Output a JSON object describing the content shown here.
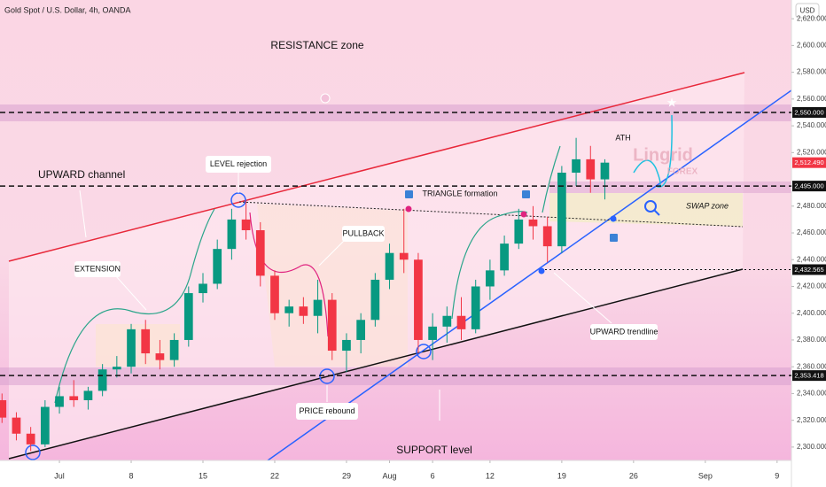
{
  "header": "Gold Spot / U.S. Dollar, 4h, OANDA",
  "currency": "USD",
  "watermark": {
    "brand": "Lingrid",
    "sub": "FOREX"
  },
  "chart_data": {
    "type": "candlestick",
    "x": [
      -4,
      -3,
      -2,
      -1,
      0,
      1,
      2,
      3,
      4,
      5,
      6,
      7,
      8,
      9,
      10,
      11,
      12,
      13,
      14,
      15,
      16,
      17,
      18,
      19,
      20,
      21,
      22,
      23,
      24,
      25,
      26,
      27,
      28,
      29,
      30,
      31,
      32,
      33,
      34,
      35,
      36,
      37,
      38
    ],
    "open": [
      2335,
      2322,
      2310,
      2302,
      2330,
      2338,
      2335,
      2342,
      2358,
      2360,
      2388,
      2370,
      2365,
      2380,
      2415,
      2422,
      2448,
      2470,
      2462,
      2428,
      2400,
      2405,
      2398,
      2410,
      2372,
      2380,
      2395,
      2425,
      2445,
      2440,
      2380,
      2390,
      2398,
      2388,
      2420,
      2432,
      2452,
      2470,
      2465,
      2450,
      2505,
      2515,
      2500
    ],
    "high": [
      2340,
      2326,
      2315,
      2335,
      2345,
      2350,
      2345,
      2362,
      2368,
      2392,
      2395,
      2380,
      2385,
      2420,
      2430,
      2455,
      2478,
      2484,
      2468,
      2432,
      2410,
      2412,
      2425,
      2415,
      2385,
      2400,
      2430,
      2452,
      2478,
      2445,
      2400,
      2405,
      2412,
      2425,
      2440,
      2458,
      2478,
      2480,
      2472,
      2510,
      2531,
      2525,
      2515
    ],
    "low": [
      2318,
      2305,
      2297,
      2300,
      2325,
      2330,
      2328,
      2338,
      2352,
      2355,
      2362,
      2358,
      2360,
      2375,
      2408,
      2418,
      2440,
      2455,
      2420,
      2395,
      2390,
      2392,
      2385,
      2365,
      2356,
      2370,
      2390,
      2418,
      2430,
      2370,
      2365,
      2378,
      2380,
      2385,
      2410,
      2428,
      2448,
      2455,
      2438,
      2445,
      2495,
      2490,
      2485
    ],
    "close": [
      2322,
      2310,
      2302,
      2330,
      2338,
      2335,
      2342,
      2358,
      2360,
      2388,
      2370,
      2365,
      2380,
      2415,
      2422,
      2448,
      2470,
      2462,
      2428,
      2400,
      2405,
      2398,
      2410,
      2372,
      2380,
      2395,
      2425,
      2445,
      2440,
      2380,
      2390,
      2398,
      2388,
      2420,
      2432,
      2452,
      2470,
      2465,
      2450,
      2505,
      2515,
      2500,
      2512.49
    ],
    "up_color": "#089981",
    "down_color": "#f23645",
    "xlim": [
      -4.14,
      51
    ],
    "ylim": [
      2290,
      2634
    ],
    "xticks": [
      {
        "value": 0,
        "label": "Jul"
      },
      {
        "value": 5,
        "label": "8"
      },
      {
        "value": 10,
        "label": "15"
      },
      {
        "value": 15,
        "label": "22"
      },
      {
        "value": 20,
        "label": "29"
      },
      {
        "value": 23,
        "label": "Aug"
      },
      {
        "value": 26,
        "label": "6"
      },
      {
        "value": 30,
        "label": "12"
      },
      {
        "value": 35,
        "label": "19"
      },
      {
        "value": 40,
        "label": "26"
      },
      {
        "value": 45,
        "label": "Sep"
      },
      {
        "value": 50,
        "label": "9"
      }
    ],
    "yticks": [
      {
        "value": 2300,
        "label": "2,300.000"
      },
      {
        "value": 2320,
        "label": "2,320.000"
      },
      {
        "value": 2340,
        "label": "2,340.000"
      },
      {
        "value": 2360,
        "label": "2,360.000"
      },
      {
        "value": 2380,
        "label": "2,380.000"
      },
      {
        "value": 2400,
        "label": "2,400.000"
      },
      {
        "value": 2420,
        "label": "2,420.000"
      },
      {
        "value": 2440,
        "label": "2,440.000"
      },
      {
        "value": 2460,
        "label": "2,460.000"
      },
      {
        "value": 2480,
        "label": "2,480.000"
      },
      {
        "value": 2520,
        "label": "2,520.000"
      },
      {
        "value": 2540,
        "label": "2,540.000"
      },
      {
        "value": 2560,
        "label": "2,560.000"
      },
      {
        "value": 2580,
        "label": "2,580.000"
      },
      {
        "value": 2600,
        "label": "2,600.000"
      },
      {
        "value": 2620,
        "label": "2,620.000"
      }
    ],
    "price_levels": [
      {
        "value": 2550,
        "label": "2,550.000",
        "style": "dashed"
      },
      {
        "value": 2495,
        "label": "2,495.000",
        "style": "dashed"
      },
      {
        "value": 2432.565,
        "label": "2,432.565",
        "style": "dotted"
      },
      {
        "value": 2353.418,
        "label": "2,353.418",
        "style": "dashed"
      }
    ],
    "last_price": {
      "value": 2512.49,
      "label": "2,512.490",
      "color": "#f23645"
    },
    "annotations": {
      "resistance": "RESISTANCE zone",
      "channel": "UPWARD channel",
      "rejection": "LEVEL rejection",
      "triangle": "TRIANGLE formation",
      "pullback": "PULLBACK",
      "extension": "EXTENSION",
      "ath": "ATH",
      "swap": "SWAP zone",
      "rebound": "PRICE rebound",
      "support": "SUPPORT level",
      "trendline": "UPWARD trendline"
    }
  }
}
